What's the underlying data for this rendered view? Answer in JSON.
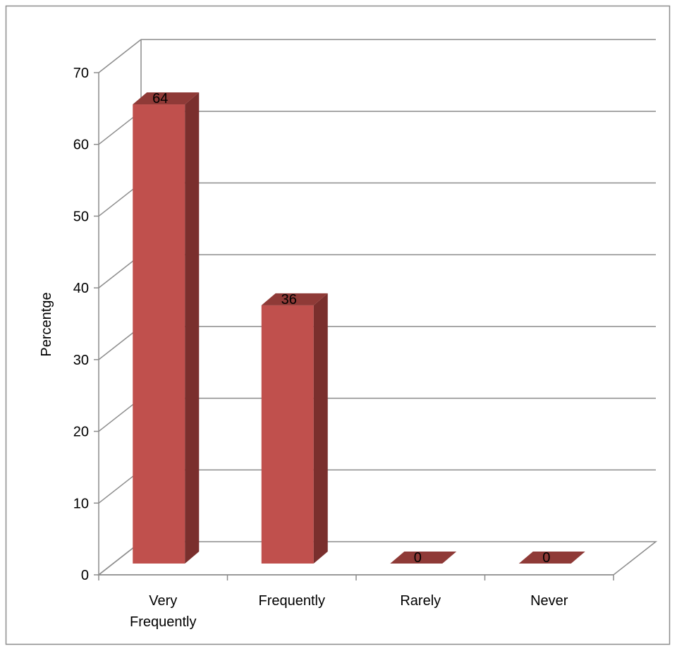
{
  "chart_data": {
    "type": "bar",
    "style": "3d-column",
    "categories": [
      "Very Frequently",
      "Frequently",
      "Rarely",
      "Never"
    ],
    "category_lines": [
      [
        "Very",
        "Frequently"
      ],
      [
        "Frequently"
      ],
      [
        "Rarely"
      ],
      [
        "Never"
      ]
    ],
    "values": [
      64,
      36,
      0,
      0
    ],
    "data_labels": [
      "64",
      "36",
      "0",
      "0"
    ],
    "title": "",
    "xlabel": "",
    "ylabel": "Percentge",
    "ylim": [
      0,
      70
    ],
    "yticks": [
      0,
      10,
      20,
      30,
      40,
      50,
      60,
      70
    ],
    "grid": true,
    "legend": "none",
    "colors": {
      "bar_front": "#c0504d",
      "bar_side": "#7a2f2d",
      "bar_top": "#8f3a37",
      "grid": "#8c8c8c",
      "frame": "#8c8c8c"
    }
  }
}
